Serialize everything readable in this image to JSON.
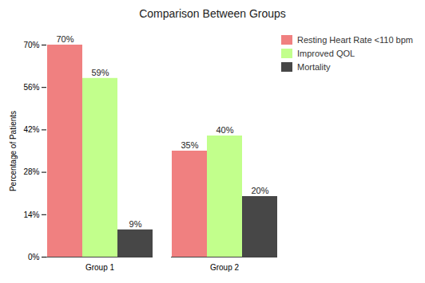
{
  "chart_data": {
    "type": "bar",
    "title": "Comparison Between Groups",
    "y_label": "Percentage of Patients",
    "categories": [
      "Group 1",
      "Group 2"
    ],
    "series": [
      {
        "name": "Resting Heart Rate <110 bpm",
        "color": "#f08080",
        "values": [
          70,
          35
        ],
        "value_labels": [
          "70%",
          "35%"
        ]
      },
      {
        "name": "Improved QOL",
        "color": "#c2ff8c",
        "values": [
          59,
          40
        ],
        "value_labels": [
          "59%",
          "40%"
        ]
      },
      {
        "name": "Mortality",
        "color": "#474747",
        "values": [
          9,
          20
        ],
        "value_labels": [
          "9%",
          "20%"
        ]
      }
    ],
    "ylim": [
      0,
      70
    ],
    "yticks": [
      {
        "value": 0,
        "label": "0%"
      },
      {
        "value": 14,
        "label": "14%"
      },
      {
        "value": 28,
        "label": "28%"
      },
      {
        "value": 42,
        "label": "42%"
      },
      {
        "value": 56,
        "label": "56%"
      },
      {
        "value": 70,
        "label": "70%"
      }
    ],
    "grid": false,
    "legend": "right",
    "data_labels": true
  }
}
